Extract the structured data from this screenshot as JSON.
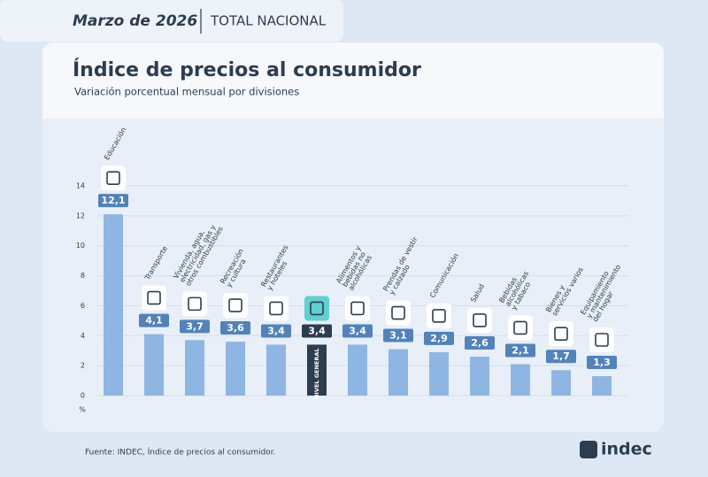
{
  "header": {
    "period": "Marzo de 2026",
    "scope": "TOTAL NACIONAL"
  },
  "chart_data": {
    "type": "bar",
    "title": "Índice de precios al consumidor",
    "subtitle": "Variación porcentual mensual por divisiones",
    "y_unit": "%",
    "categories": [
      [
        "Educación"
      ],
      [
        "Transporte"
      ],
      [
        "Vivienda, agua,",
        "electricidad, gas y",
        "otros combustibles"
      ],
      [
        "Recreación",
        "y cultura"
      ],
      [
        "Restaurantes",
        "y hoteles"
      ],
      [
        "NIVEL GENERAL"
      ],
      [
        "Alimentos y",
        "bebidas no",
        "alcohólicas"
      ],
      [
        "Prendas de vestir",
        "y calzado"
      ],
      [
        "Comunicación"
      ],
      [
        "Salud"
      ],
      [
        "Bebidas",
        "alcohólicas",
        "y tabaco"
      ],
      [
        "Bienes y",
        "servicios varios"
      ],
      [
        "Equipamiento",
        "y mantenimiento",
        "del hogar"
      ]
    ],
    "values": [
      12.1,
      4.1,
      3.7,
      3.6,
      3.4,
      3.4,
      3.4,
      3.1,
      2.9,
      2.6,
      2.1,
      1.7,
      1.3
    ],
    "value_labels": [
      "12,1",
      "4,1",
      "3,7",
      "3,6",
      "3,4",
      "3,4",
      "3,4",
      "3,1",
      "2,9",
      "2,6",
      "2,1",
      "1,7",
      "1,3"
    ],
    "colors": [
      "#8fb6e2",
      "#8fb6e2",
      "#8fb6e2",
      "#8fb6e2",
      "#8fb6e2",
      "#2c3d4f",
      "#8fb6e2",
      "#8fb6e2",
      "#8fb6e2",
      "#8fb6e2",
      "#8fb6e2",
      "#8fb6e2",
      "#8fb6e2"
    ],
    "ylim": [
      0,
      14
    ],
    "yticks": [
      0,
      2,
      4,
      6,
      8,
      10,
      12,
      14
    ],
    "grid": true
  },
  "footer": {
    "source": "Fuente: INDEC, Índice de precios al consumidor.",
    "logo": "indec"
  }
}
